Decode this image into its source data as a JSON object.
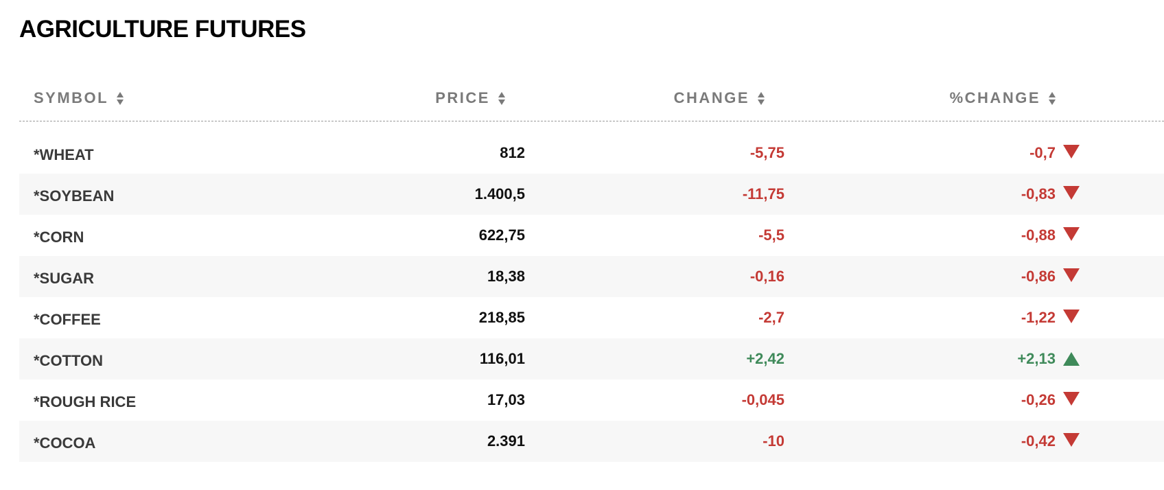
{
  "page": {
    "title": "AGRICULTURE FUTURES"
  },
  "table": {
    "headers": {
      "symbol": "SYMBOL",
      "price": "PRICE",
      "change": "CHANGE",
      "pct_change": "%CHANGE"
    },
    "rows": [
      {
        "symbol": "*WHEAT",
        "price": "812",
        "change": "-5,75",
        "pct_change": "-0,7",
        "direction": "down"
      },
      {
        "symbol": "*SOYBEAN",
        "price": "1.400,5",
        "change": "-11,75",
        "pct_change": "-0,83",
        "direction": "down"
      },
      {
        "symbol": "*CORN",
        "price": "622,75",
        "change": "-5,5",
        "pct_change": "-0,88",
        "direction": "down"
      },
      {
        "symbol": "*SUGAR",
        "price": "18,38",
        "change": "-0,16",
        "pct_change": "-0,86",
        "direction": "down"
      },
      {
        "symbol": "*COFFEE",
        "price": "218,85",
        "change": "-2,7",
        "pct_change": "-1,22",
        "direction": "down"
      },
      {
        "symbol": "*COTTON",
        "price": "116,01",
        "change": "+2,42",
        "pct_change": "+2,13",
        "direction": "up"
      },
      {
        "symbol": "*ROUGH RICE",
        "price": "17,03",
        "change": "-0,045",
        "pct_change": "-0,26",
        "direction": "down"
      },
      {
        "symbol": "*COCOA",
        "price": "2.391",
        "change": "-10",
        "pct_change": "-0,42",
        "direction": "down"
      }
    ]
  },
  "icons": {
    "sort": "sort-icon",
    "down": "arrow-down-icon",
    "up": "arrow-up-icon"
  },
  "colors": {
    "negative": "#c43a35",
    "positive": "#3f8a5a",
    "header_text": "#7a7a7a",
    "row_alt_bg": "#f7f7f7"
  }
}
